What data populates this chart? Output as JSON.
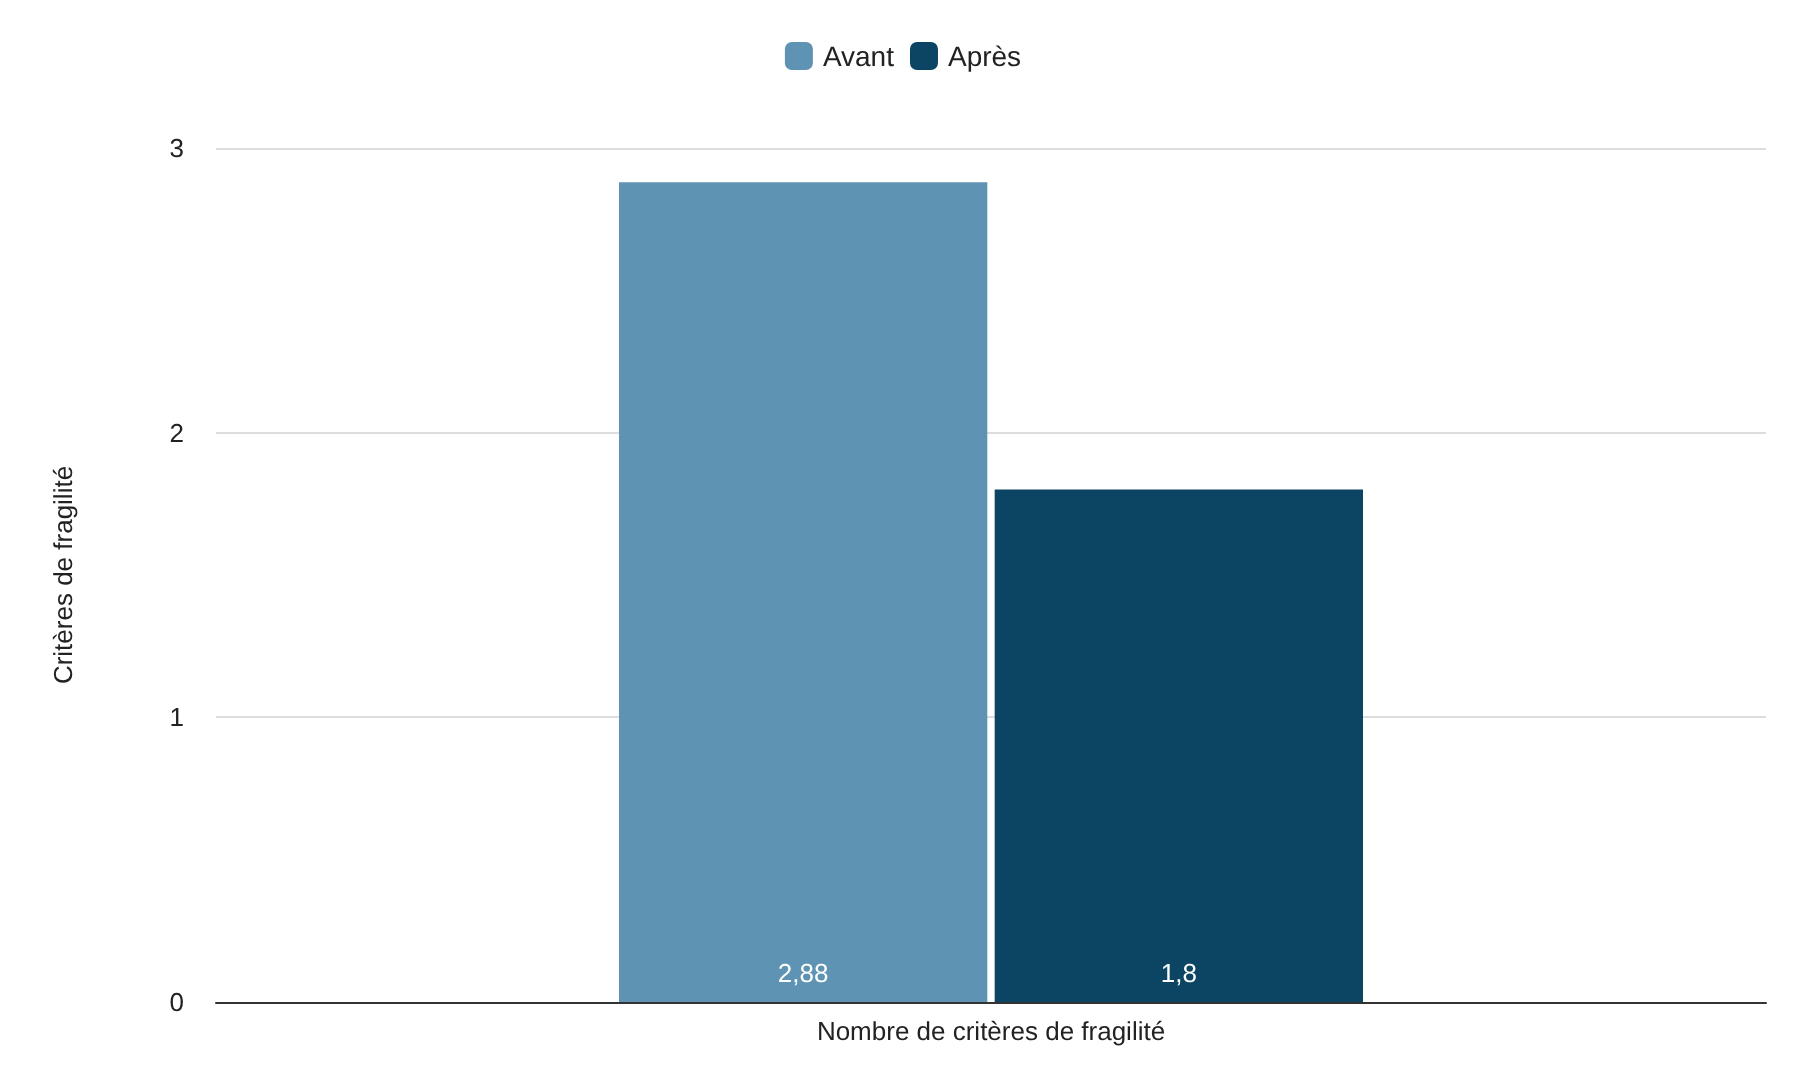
{
  "chart_data": {
    "type": "bar",
    "ylabel": "Critères de fragilité",
    "categories": [
      "Nombre de critères de fragilité"
    ],
    "series": [
      {
        "name": "Avant",
        "color": "#5f93b3",
        "values": [
          2.88
        ],
        "value_labels": [
          "2,88"
        ]
      },
      {
        "name": "Après",
        "color": "#0b4563",
        "values": [
          1.8
        ],
        "value_labels": [
          "1,8"
        ]
      }
    ],
    "ylim": [
      0,
      3
    ],
    "yticks": [
      0,
      1,
      2,
      3
    ],
    "grid": "y",
    "legend": "top"
  }
}
